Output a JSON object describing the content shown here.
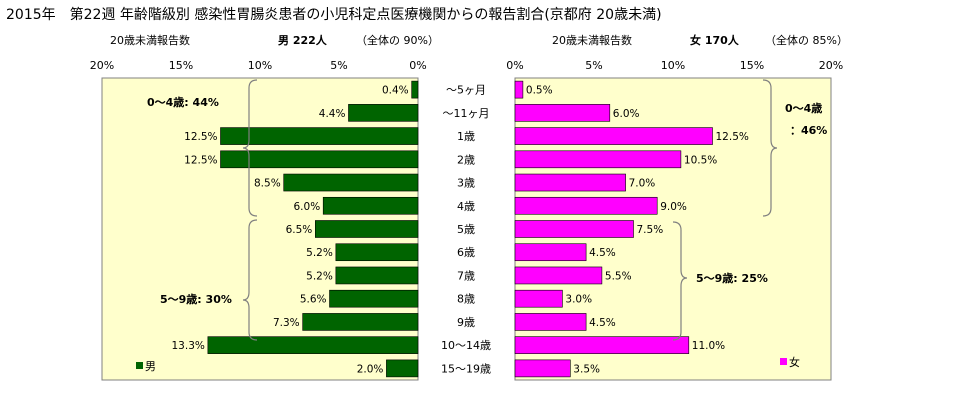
{
  "title": "2015年　第22週 年齢階級別 感染性胃腸炎患者の小児科定点医療機関からの報告割合(京都府 20歳未満)",
  "male_header": {
    "left": "20歳未満報告数",
    "main": "男  222人",
    "total": "（全体の  90%）"
  },
  "female_header": {
    "left": "20歳未満報告数",
    "main": "女  170人",
    "total": "（全体の  85%）"
  },
  "annotations": {
    "male_0_4": "0～4歳: 44%",
    "male_5_9": "5～9歳: 30%",
    "female_0_4_line1": "0～4歳",
    "female_0_4_line2": "：46%",
    "female_5_9": "5～9歳: 25%"
  },
  "colors": {
    "male": "#006400",
    "female": "#ff00ff",
    "plot_bg": "#ffffcc"
  },
  "chart_data": {
    "type": "bar",
    "orientation": "horizontal-butterfly",
    "categories": [
      "～5ヶ月",
      "～11ヶ月",
      "1歳",
      "2歳",
      "3歳",
      "4歳",
      "5歳",
      "6歳",
      "7歳",
      "8歳",
      "9歳",
      "10～14歳",
      "15～19歳"
    ],
    "series": [
      {
        "name": "男",
        "values": [
          0.4,
          4.4,
          12.5,
          12.5,
          8.5,
          6.0,
          6.5,
          5.2,
          5.2,
          5.6,
          7.3,
          13.3,
          2.0
        ]
      },
      {
        "name": "女",
        "values": [
          0.5,
          6.0,
          12.5,
          10.5,
          7.0,
          9.0,
          7.5,
          4.5,
          5.5,
          3.0,
          4.5,
          11.0,
          3.5
        ]
      }
    ],
    "xlim": [
      0,
      20
    ],
    "ticks": [
      "20%",
      "15%",
      "10%",
      "5%",
      "0%"
    ],
    "ticks_right": [
      "0%",
      "5%",
      "10%",
      "15%",
      "20%"
    ],
    "labels_male": [
      "0.4%",
      "4.4%",
      "12.5%",
      "12.5%",
      "8.5%",
      "6.0%",
      "6.5%",
      "5.2%",
      "5.2%",
      "5.6%",
      "7.3%",
      "13.3%",
      "2.0%"
    ],
    "labels_female": [
      "0.5%",
      "6.0%",
      "12.5%",
      "10.5%",
      "7.0%",
      "9.0%",
      "7.5%",
      "4.5%",
      "5.5%",
      "3.0%",
      "4.5%",
      "11.0%",
      "3.5%"
    ],
    "legend_male": "男",
    "legend_female": "女",
    "grid": false
  }
}
